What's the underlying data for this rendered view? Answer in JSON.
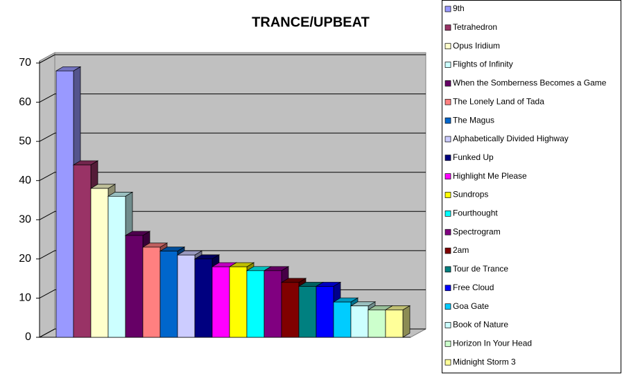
{
  "chart_data": {
    "type": "bar3d",
    "title": "TRANCE/UPBEAT",
    "categories": [
      null
    ],
    "ylim": [
      0,
      70
    ],
    "yticks": [
      0,
      10,
      20,
      30,
      40,
      50,
      60,
      70
    ],
    "grid": true,
    "legend": "right",
    "series": [
      {
        "name": "9th",
        "color": "#9999ff",
        "values": [
          68
        ]
      },
      {
        "name": "Tetrahedron",
        "color": "#993366",
        "values": [
          44
        ]
      },
      {
        "name": "Opus Iridium",
        "color": "#ffffcc",
        "values": [
          38
        ]
      },
      {
        "name": "Flights of Infinity",
        "color": "#ccffff",
        "values": [
          36
        ]
      },
      {
        "name": "When the Somberness Becomes a Game",
        "color": "#660066",
        "values": [
          26
        ]
      },
      {
        "name": "The Lonely Land of Tada",
        "color": "#ff8080",
        "values": [
          23
        ]
      },
      {
        "name": "The Magus",
        "color": "#0066cc",
        "values": [
          22
        ]
      },
      {
        "name": "Alphabetically Divided Highway",
        "color": "#ccccff",
        "values": [
          21
        ]
      },
      {
        "name": "Funked Up",
        "color": "#000080",
        "values": [
          20
        ]
      },
      {
        "name": "Highlight Me Please",
        "color": "#ff00ff",
        "values": [
          18
        ]
      },
      {
        "name": "Sundrops",
        "color": "#ffff00",
        "values": [
          18
        ]
      },
      {
        "name": "Fourthought",
        "color": "#00ffff",
        "values": [
          17
        ]
      },
      {
        "name": "Spectrogram",
        "color": "#800080",
        "values": [
          17
        ]
      },
      {
        "name": "2am",
        "color": "#800000",
        "values": [
          14
        ]
      },
      {
        "name": "Tour de Trance",
        "color": "#008080",
        "values": [
          13
        ]
      },
      {
        "name": "Free Cloud",
        "color": "#0000ff",
        "values": [
          13
        ]
      },
      {
        "name": "Goa Gate",
        "color": "#00ccff",
        "values": [
          9
        ]
      },
      {
        "name": "Book of Nature",
        "color": "#ccffff",
        "values": [
          8
        ]
      },
      {
        "name": "Horizon In Your Head",
        "color": "#ccffcc",
        "values": [
          7
        ]
      },
      {
        "name": "Midnight Storm 3",
        "color": "#ffff99",
        "values": [
          7
        ]
      }
    ]
  }
}
